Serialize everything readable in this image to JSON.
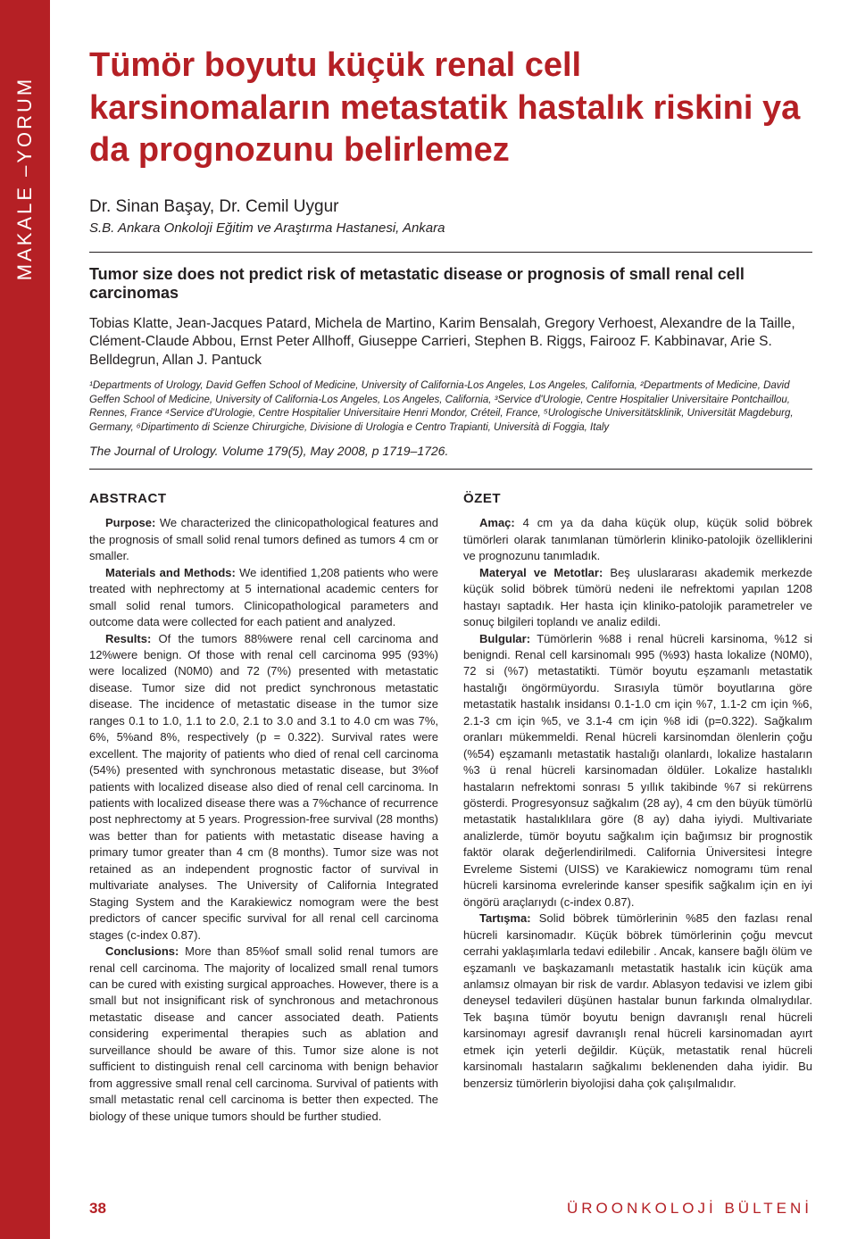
{
  "sidebar": {
    "label": "MAKALE –YORUM"
  },
  "title_tr": "Tümör boyutu küçük renal cell karsinomaların metastatik hastalık riskini ya da prognozunu belirlemez",
  "authors_tr": "Dr. Sinan Başay, Dr. Cemil Uygur",
  "affiliation_tr": "S.B. Ankara Onkoloji Eğitim ve Araştırma Hastanesi, Ankara",
  "en_title": "Tumor size does not predict risk of metastatic disease or prognosis of small renal cell carcinomas",
  "en_authors": "Tobias Klatte, Jean-Jacques Patard, Michela de Martino, Karim Bensalah, Gregory Verhoest, Alexandre de la Taille, Clément-Claude Abbou, Ernst Peter Allhoff, Giuseppe Carrieri, Stephen B. Riggs, Fairooz F. Kabbinavar, Arie S. Belldegrun, Allan J. Pantuck",
  "en_affil": "¹Departments of Urology, David Geffen School of Medicine, University of California-Los Angeles, Los Angeles, California, ²Departments of Medicine, David Geffen School of Medicine, University of California-Los Angeles, Los Angeles, California, ³Service d'Urologie, Centre Hospitalier Universitaire Pontchaillou, Rennes, France ⁴Service d'Urologie, Centre Hospitalier Universitaire Henri Mondor, Créteil, France, ⁵Urologische Universitätsklinik, Universität Magdeburg, Germany, ⁶Dipartimento di Scienze Chirurgiche, Divisione di Urologia e Centro Trapianti, Università di Foggia, Italy",
  "citation": "The Journal of Urology. Volume 179(5), May 2008, p 1719–1726.",
  "abstract": {
    "heading": "ABSTRACT",
    "purpose_lead": "Purpose:",
    "purpose": " We characterized the clinicopathological features and the prognosis of small solid renal tumors defined as tumors 4 cm or smaller.",
    "methods_lead": "Materials and Methods:",
    "methods": " We identified 1,208 patients who were treated with nephrectomy at 5 international academic centers for small solid renal tumors. Clinicopathological parameters and outcome data were collected for each patient and analyzed.",
    "results_lead": "Results:",
    "results": " Of the tumors 88%were renal cell carcinoma and 12%were benign. Of those with renal cell carcinoma 995 (93%) were localized (N0M0) and 72 (7%) presented with metastatic disease. Tumor size did not predict synchronous metastatic disease. The incidence of metastatic disease in the tumor size ranges 0.1 to 1.0, 1.1 to 2.0, 2.1 to 3.0 and 3.1 to 4.0 cm was 7%, 6%, 5%and 8%, respectively (p = 0.322). Survival rates were excellent. The majority of patients who died of renal cell carcinoma (54%) presented with synchronous metastatic disease, but 3%of patients with localized disease also died of renal cell carcinoma. In patients with localized disease there was a 7%chance of recurrence post nephrectomy at 5 years. Progression-free survival (28 months) was better than for patients with metastatic disease having a primary tumor greater than 4 cm (8 months). Tumor size was not retained as an independent prognostic factor of survival in multivariate analyses. The University of California Integrated Staging System and the Karakiewicz nomogram were the best predictors of cancer specific survival for all renal cell carcinoma stages (c-index 0.87).",
    "conclusions_lead": "Conclusions:",
    "conclusions": " More than 85%of small solid renal tumors are renal cell carcinoma. The majority of localized small renal tumors can be cured with existing surgical approaches. However, there is a small but not insignificant risk of synchronous and metachronous metastatic disease and cancer associated death. Patients considering experimental therapies such as ablation and surveillance should be aware of this. Tumor size alone is not sufficient to distinguish renal cell carcinoma with benign behavior from aggressive small renal cell carcinoma. Survival of patients with small metastatic renal cell carcinoma is better then expected. The biology of these unique tumors should be further studied."
  },
  "ozet": {
    "heading": "ÖZET",
    "amac_lead": "Amaç:",
    "amac": " 4 cm ya da daha küçük olup, küçük solid böbrek tümörleri olarak tanımlanan tümörlerin kliniko-patolojik özelliklerini ve prognozunu tanımladık.",
    "materyal_lead": "Materyal ve Metotlar:",
    "materyal": " Beş uluslararası akademik merkezde küçük solid böbrek tümörü nedeni ile nefrektomi yapılan 1208 hastayı saptadık. Her hasta için kliniko-patolojik parametreler ve sonuç bilgileri toplandı ve analiz edildi.",
    "bulgular_lead": "Bulgular:",
    "bulgular": " Tümörlerin %88 i renal hücreli karsinoma, %12 si benigndi. Renal cell karsinomalı 995 (%93) hasta lokalize (N0M0), 72 si (%7) metastatikti. Tümör boyutu eşzamanlı metastatik hastalığı öngörmüyordu. Sırasıyla tümör boyutlarına göre metastatik hastalık insidansı 0.1-1.0 cm için %7, 1.1-2 cm için %6, 2.1-3 cm için %5, ve 3.1-4 cm için %8 idi (p=0.322). Sağkalım oranları mükemmeldi. Renal hücreli karsinomdan ölenlerin çoğu (%54) eşzamanlı metastatik hastalığı olanlardı, lokalize hastaların %3 ü renal hücreli karsinomadan öldüler. Lokalize hastalıklı hastaların nefrektomi sonrası 5 yıllık takibinde %7 si rekürrens gösterdi. Progresyonsuz sağkalım (28 ay), 4 cm den büyük tümörlü metastatik hastalıklılara göre (8 ay) daha iyiydi. Multivariate analizlerde, tümör boyutu sağkalım için bağımsız bir prognostik faktör olarak değerlendirilmedi. California Üniversitesi İntegre Evreleme Sistemi (UISS) ve Karakiewicz nomogramı tüm renal hücreli karsinoma evrelerinde kanser spesifik sağkalım için en iyi öngörü araçlarıydı (c-index 0.87).",
    "tartisma_lead": "Tartışma:",
    "tartisma": " Solid böbrek tümörlerinin %85 den fazlası renal hücreli karsinomadır. Küçük böbrek tümörlerinin çoğu mevcut cerrahi yaklaşımlarla tedavi edilebilir . Ancak, kansere bağlı ölüm ve eşzamanlı ve başkazamanlı metastatik hastalık icin küçük ama anlamsız olmayan bir risk de vardır. Ablasyon tedavisi ve izlem gibi deneysel tedavileri düşünen hastalar bunun farkında olmalıydılar. Tek başına tümör boyutu benign davranışlı renal hücreli karsinomayı agresif davranışlı renal hücreli karsinomadan ayırt etmek için yeterli değildir. Küçük, metastatik renal hücreli karsinomalı hastaların sağkalımı beklenenden daha iyidir. Bu benzersiz tümörlerin biyolojisi daha çok çalışılmalıdır."
  },
  "footer": {
    "page": "38",
    "journal": "ÜROONKOLOJİ BÜLTENİ"
  },
  "colors": {
    "brand_red": "#b52025",
    "text": "#231f20",
    "bg": "#ffffff"
  }
}
